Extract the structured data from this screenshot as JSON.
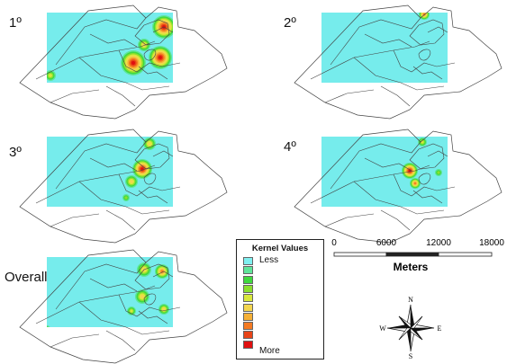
{
  "panels": [
    {
      "id": "p1",
      "label": "1º"
    },
    {
      "id": "p2",
      "label": "2º"
    },
    {
      "id": "p3",
      "label": "3º"
    },
    {
      "id": "p4",
      "label": "4º"
    },
    {
      "id": "p5",
      "label": "Overall"
    }
  ],
  "colors": {
    "background_fill": "#76ecec",
    "boundary_line": "#444444",
    "ramp": [
      "#7ff0f0",
      "#5fe59a",
      "#3fd93f",
      "#8be02e",
      "#d9e83c",
      "#f3d64f",
      "#f5b036",
      "#f47a22",
      "#e84418",
      "#e01010"
    ]
  },
  "legend": {
    "title": "Kernel Values",
    "low_label": "Less",
    "high_label": "More"
  },
  "scale_bar": {
    "ticks": [
      "0",
      "6000",
      "12000",
      "18000"
    ],
    "unit_label": "Meters"
  },
  "compass": {
    "north": "N",
    "south": "S",
    "east": "E",
    "west": "W"
  }
}
